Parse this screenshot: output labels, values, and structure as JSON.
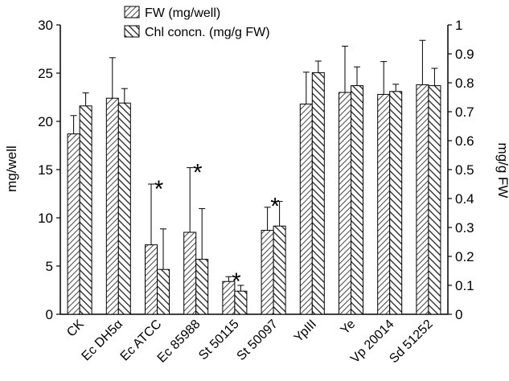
{
  "chart_data": {
    "type": "bar",
    "title": "",
    "categories": [
      "CK",
      "Ec DH5α",
      "Ec ATCC",
      "Ec 85988",
      "St 50115",
      "St 50097",
      "YpIII",
      "Ye",
      "Vp 20014",
      "Sd 51252"
    ],
    "series": [
      {
        "name": "FW (mg/well)",
        "axis": "left",
        "pattern": "forward-hatch",
        "values": [
          18.7,
          22.4,
          7.2,
          8.5,
          3.4,
          8.7,
          21.8,
          23.0,
          22.8,
          23.8
        ],
        "errors": [
          1.9,
          4.2,
          6.3,
          6.7,
          0.5,
          2.4,
          3.3,
          4.8,
          3.4,
          4.6
        ]
      },
      {
        "name": "Chl concn. (mg/g FW)",
        "axis": "right",
        "pattern": "back-hatch",
        "values": [
          0.72,
          0.73,
          0.155,
          0.19,
          0.08,
          0.305,
          0.835,
          0.79,
          0.77,
          0.79
        ],
        "errors": [
          0.045,
          0.05,
          0.14,
          0.175,
          0.02,
          0.085,
          0.04,
          0.065,
          0.025,
          0.06
        ]
      }
    ],
    "significance_marker": "*",
    "significant_categories": [
      "Ec ATCC",
      "Ec 85988",
      "St 50115",
      "St 50097"
    ],
    "ylabel_left": "mg/well",
    "ylabel_right": "mg/g FW",
    "ylim_left": [
      0,
      30
    ],
    "yticks_left": [
      0,
      5,
      10,
      15,
      20,
      25,
      30
    ],
    "ylim_right": [
      0,
      1
    ],
    "yticks_right": [
      "0",
      "0.1",
      "0.2",
      "0.3",
      "0.4",
      "0.5",
      "0.6",
      "0.7",
      "0.8",
      "0.9",
      "1"
    ],
    "grid": false,
    "legend_position": "top-left"
  }
}
